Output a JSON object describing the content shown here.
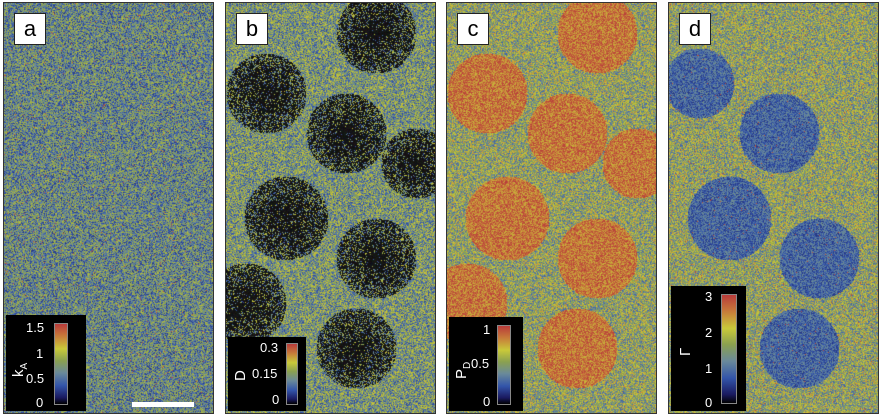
{
  "panels": [
    {
      "label": "a",
      "colorbar": {
        "symbol": "k",
        "subscript": "A",
        "ticks": [
          "1.5",
          "1",
          "0.5",
          "0"
        ]
      }
    },
    {
      "label": "b",
      "colorbar": {
        "symbol": "D",
        "subscript": "",
        "ticks": [
          "0.3",
          "0.15",
          "0"
        ]
      }
    },
    {
      "label": "c",
      "colorbar": {
        "symbol": "P",
        "subscript": "D",
        "ticks": [
          "1",
          "0.5",
          "0"
        ]
      }
    },
    {
      "label": "d",
      "colorbar": {
        "symbol": "Γ",
        "subscript": "",
        "ticks": [
          "3",
          "2",
          "1",
          "0"
        ]
      }
    }
  ],
  "colors": {
    "colormap": [
      "#1a1a60",
      "#3355aa",
      "#6a8a9a",
      "#8aa050",
      "#c9c93a",
      "#c77a3a",
      "#b83a3a"
    ],
    "scalebar": "#ffffff"
  }
}
